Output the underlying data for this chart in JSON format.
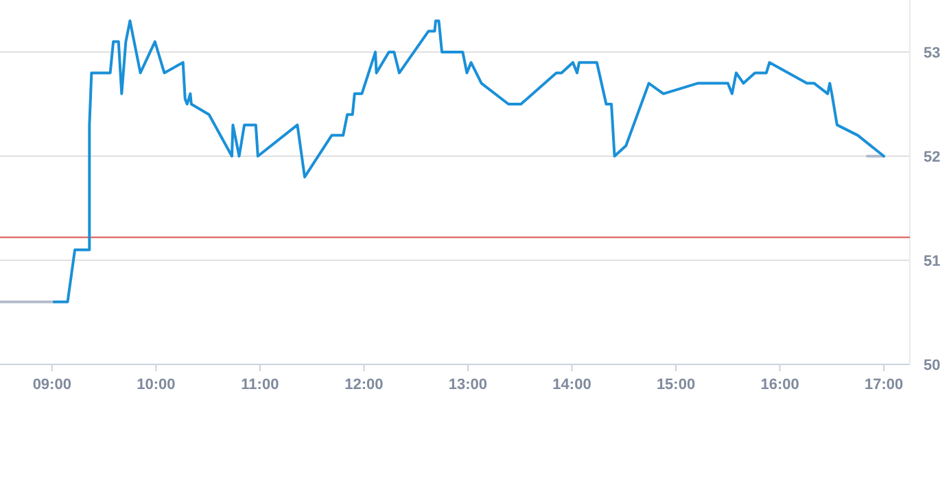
{
  "chart_data": {
    "type": "line",
    "xlim": [
      8.5,
      17.25
    ],
    "xticks": [
      {
        "value": 9,
        "label": "09:00"
      },
      {
        "value": 10,
        "label": "10:00"
      },
      {
        "value": 11,
        "label": "11:00"
      },
      {
        "value": 12,
        "label": "12:00"
      },
      {
        "value": 13,
        "label": "13:00"
      },
      {
        "value": 14,
        "label": "14:00"
      },
      {
        "value": 15,
        "label": "15:00"
      },
      {
        "value": 16,
        "label": "16:00"
      },
      {
        "value": 17,
        "label": "17:00"
      }
    ],
    "ylim": [
      50,
      53.5
    ],
    "yticks": [
      50,
      51,
      52,
      53
    ],
    "grid": "y",
    "marker": "none",
    "line_style": "solid",
    "ref_lines": [
      {
        "axis": "y",
        "value": 51.22,
        "color": "#d9534f"
      }
    ],
    "series": [
      {
        "color": "#b4bccb",
        "x": [
          8.5,
          9.02,
          12,
          16.84,
          17.0
        ],
        "values": [
          50.6,
          50.6,
          null,
          52.0,
          52.0
        ]
      },
      {
        "color": "#1a90d8",
        "x": [
          9.02,
          9.15,
          9.22,
          9.36,
          9.36,
          9.38,
          9.56,
          9.59,
          9.64,
          9.67,
          9.71,
          9.75,
          9.85,
          9.99,
          10.08,
          10.26,
          10.28,
          10.3,
          10.33,
          10.34,
          10.51,
          10.73,
          10.74,
          10.8,
          10.85,
          10.96,
          10.98,
          11.36,
          11.43,
          11.69,
          11.8,
          11.84,
          11.89,
          11.91,
          11.98,
          12.11,
          12.12,
          12.24,
          12.29,
          12.34,
          12.62,
          12.68,
          12.69,
          12.72,
          12.75,
          12.95,
          12.99,
          13.03,
          13.13,
          13.39,
          13.51,
          13.85,
          13.9,
          14.01,
          14.05,
          14.07,
          14.24,
          14.33,
          14.38,
          14.41,
          14.52,
          14.74,
          14.88,
          15.21,
          15.5,
          15.54,
          15.58,
          15.65,
          15.76,
          15.87,
          15.9,
          16.26,
          16.33,
          16.46,
          16.48,
          16.5,
          16.55,
          16.75,
          17.0
        ],
        "values": [
          50.6,
          50.6,
          51.1,
          51.1,
          52.3,
          52.8,
          52.8,
          53.1,
          53.1,
          52.6,
          53.1,
          53.3,
          52.8,
          53.1,
          52.8,
          52.9,
          52.55,
          52.5,
          52.6,
          52.5,
          52.4,
          52.0,
          52.3,
          52.0,
          52.3,
          52.3,
          52.0,
          52.3,
          51.8,
          52.2,
          52.2,
          52.4,
          52.4,
          52.6,
          52.6,
          53.0,
          52.8,
          53.0,
          53.0,
          52.8,
          53.2,
          53.2,
          53.3,
          53.3,
          53.0,
          53.0,
          52.8,
          52.9,
          52.7,
          52.5,
          52.5,
          52.8,
          52.8,
          52.9,
          52.8,
          52.9,
          52.9,
          52.5,
          52.5,
          52.0,
          52.1,
          52.7,
          52.6,
          52.7,
          52.7,
          52.6,
          52.8,
          52.7,
          52.8,
          52.8,
          52.9,
          52.7,
          52.7,
          52.6,
          52.7,
          52.6,
          52.3,
          52.2,
          52.0
        ]
      }
    ]
  }
}
